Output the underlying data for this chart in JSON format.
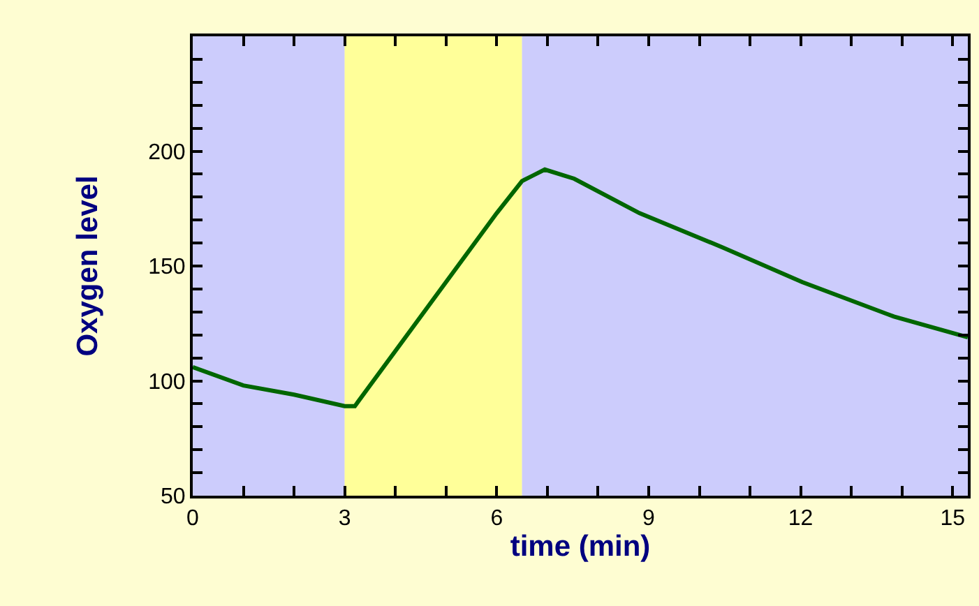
{
  "chart_data": {
    "type": "line",
    "xlabel": "time (min)",
    "ylabel": "Oxygen level",
    "x": [
      0,
      1,
      2,
      3,
      3.2,
      3.5,
      4,
      5,
      6,
      6.5,
      6.95,
      7.53,
      8.82,
      10.47,
      12.03,
      13.84,
      15.3
    ],
    "series": [
      {
        "color": "#006600",
        "values": [
          106,
          98,
          94,
          89,
          89,
          98,
          113,
          143,
          173,
          187,
          192,
          188,
          173,
          158,
          143,
          128,
          119
        ]
      }
    ],
    "xlim": [
      0,
      15.3
    ],
    "ylim": [
      50,
      250
    ],
    "xticks": [
      0,
      {
        "value": 1,
        "label": null
      },
      {
        "value": 2,
        "label": null
      },
      3,
      {
        "value": 4,
        "label": null
      },
      {
        "value": 5,
        "label": null
      },
      6,
      {
        "value": 7,
        "label": null
      },
      {
        "value": 8,
        "label": null
      },
      9,
      {
        "value": 10,
        "label": null
      },
      {
        "value": 11,
        "label": null
      },
      12,
      {
        "value": 13,
        "label": null
      },
      {
        "value": 14,
        "label": null
      },
      15
    ],
    "yticks": [
      50,
      {
        "value": 60,
        "label": null
      },
      {
        "value": 70,
        "label": null
      },
      {
        "value": 80,
        "label": null
      },
      {
        "value": 90,
        "label": null
      },
      100,
      {
        "value": 110,
        "label": null
      },
      {
        "value": 120,
        "label": null
      },
      {
        "value": 130,
        "label": null
      },
      {
        "value": 140,
        "label": null
      },
      150,
      {
        "value": 160,
        "label": null
      },
      {
        "value": 170,
        "label": null
      },
      {
        "value": 180,
        "label": null
      },
      {
        "value": 190,
        "label": null
      },
      200,
      {
        "value": 210,
        "label": null
      },
      {
        "value": 220,
        "label": null
      },
      {
        "value": 230,
        "label": null
      },
      {
        "value": 240,
        "label": null
      }
    ],
    "bands": [
      {
        "axis": "x",
        "from": 0,
        "to": 3,
        "color": "#ccccfc"
      },
      {
        "axis": "x",
        "from": 3,
        "to": 6.5,
        "color": "#ffff99"
      },
      {
        "axis": "x",
        "from": 6.5,
        "to": 15.3,
        "color": "#ccccfc"
      }
    ],
    "grid": false,
    "legend": false,
    "marker": "none",
    "line_style": "solid"
  }
}
